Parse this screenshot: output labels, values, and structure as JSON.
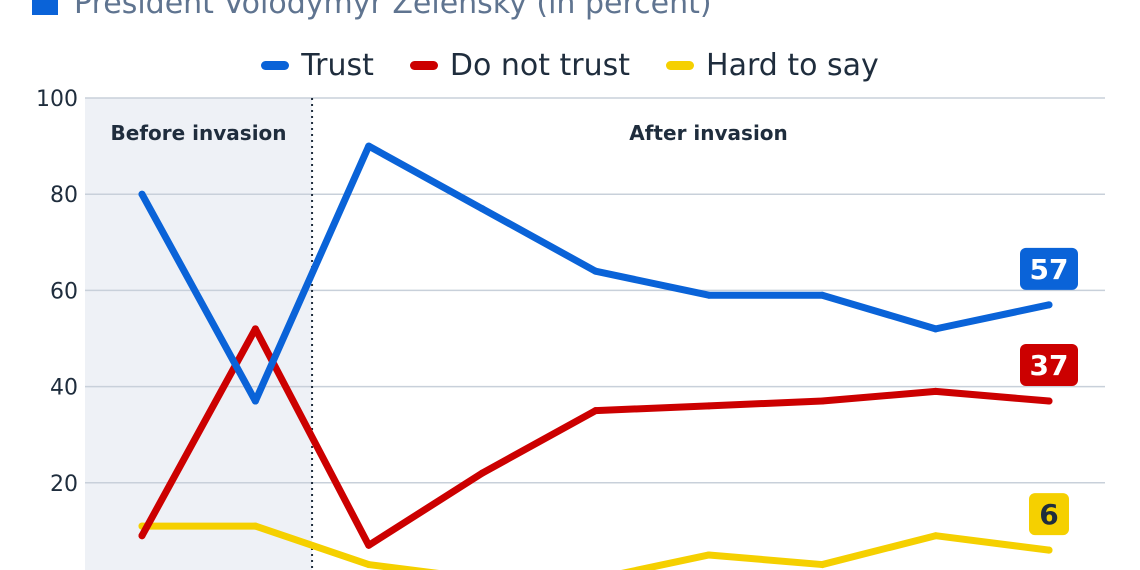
{
  "title": "President Volodymyr Zelensky (in percent)",
  "colors": {
    "title_square": "#0a63d8",
    "trust": "#0a63d8",
    "do_not_trust": "#cc0000",
    "hard_to_say": "#f5d000",
    "before_shade": "#eef1f6",
    "grid": "#c8d0da"
  },
  "chart_data": {
    "type": "line",
    "ylim": [
      0,
      100
    ],
    "yticks": [
      20,
      40,
      60,
      80,
      100
    ],
    "grid": true,
    "legend_placement": "top-center",
    "x": [
      1,
      2,
      3,
      4,
      5,
      6,
      7,
      8,
      9
    ],
    "invasion_after_index": 2,
    "periods": [
      "Before invasion",
      "After invasion"
    ],
    "series": [
      {
        "name": "Trust",
        "color_key": "trust",
        "values": [
          80,
          37,
          90,
          77,
          64,
          59,
          59,
          52,
          57
        ],
        "end_label": "57"
      },
      {
        "name": "Do not trust",
        "color_key": "do_not_trust",
        "values": [
          9,
          52,
          7,
          22,
          35,
          36,
          37,
          39,
          37
        ],
        "end_label": "37"
      },
      {
        "name": "Hard to say",
        "color_key": "hard_to_say",
        "values": [
          11,
          11,
          3,
          0,
          0,
          5,
          3,
          9,
          6
        ],
        "end_label": "6"
      }
    ]
  }
}
